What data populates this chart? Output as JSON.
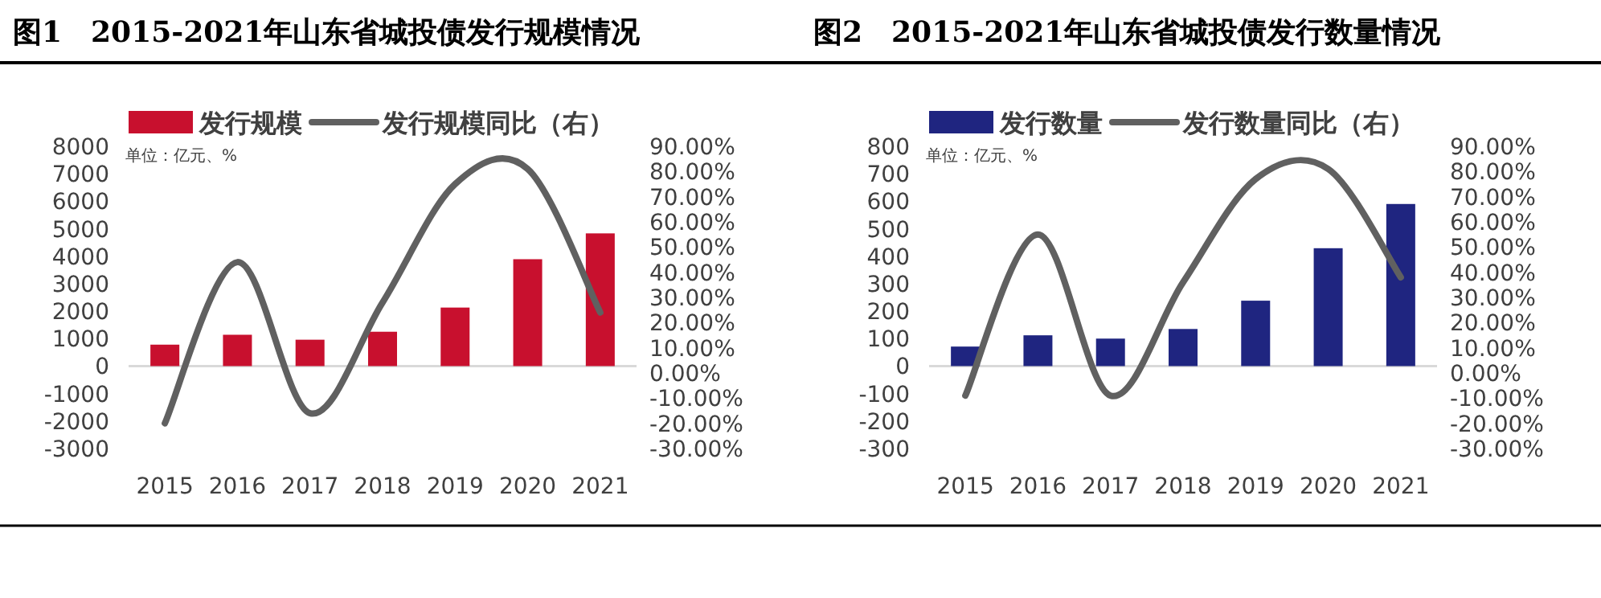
{
  "chart_data": [
    {
      "type": "bar",
      "title": "图1　2015-2021年山东省城投债发行规模情况",
      "categories": [
        "2015",
        "2016",
        "2017",
        "2018",
        "2019",
        "2020",
        "2021"
      ],
      "series": [
        {
          "name": "发行规模",
          "type": "bar",
          "color": "#c8102e",
          "values": [
            780,
            1140,
            960,
            1250,
            2130,
            3890,
            4830
          ]
        },
        {
          "name": "发行规模同比（右）",
          "type": "line",
          "axis": "y2",
          "color": "#606060",
          "values": [
            -20,
            44,
            -16,
            28,
            75,
            81,
            24
          ]
        }
      ],
      "ylim": [
        -3000,
        8000
      ],
      "yticks": [
        -3000,
        -2000,
        -1000,
        0,
        1000,
        2000,
        3000,
        4000,
        5000,
        6000,
        7000,
        8000
      ],
      "y2lim": [
        -30,
        90
      ],
      "y2ticks": [
        {
          "value": -30,
          "label": "-30.00%"
        },
        {
          "value": -20,
          "label": "-20.00%"
        },
        {
          "value": -10,
          "label": "-10.00%"
        },
        {
          "value": 0,
          "label": "0.00%"
        },
        {
          "value": 10,
          "label": "10.00%"
        },
        {
          "value": 20,
          "label": "20.00%"
        },
        {
          "value": 30,
          "label": "30.00%"
        },
        {
          "value": 40,
          "label": "40.00%"
        },
        {
          "value": 50,
          "label": "50.00%"
        },
        {
          "value": 60,
          "label": "60.00%"
        },
        {
          "value": 70,
          "label": "70.00%"
        },
        {
          "value": 80,
          "label": "80.00%"
        },
        {
          "value": 90,
          "label": "90.00%"
        }
      ],
      "legend": "top",
      "annotations": [
        "单位：亿元、%"
      ]
    },
    {
      "type": "bar",
      "title": "图2　2015-2021年山东省城投债发行数量情况",
      "categories": [
        "2015",
        "2016",
        "2017",
        "2018",
        "2019",
        "2020",
        "2021"
      ],
      "series": [
        {
          "name": "发行数量",
          "type": "bar",
          "color": "#1f2580",
          "values": [
            71,
            112,
            100,
            135,
            238,
            429,
            590
          ]
        },
        {
          "name": "发行数量同比（右）",
          "type": "line",
          "axis": "y2",
          "color": "#606060",
          "values": [
            -9,
            55,
            -9,
            36,
            77,
            81,
            38
          ]
        }
      ],
      "ylim": [
        -300,
        800
      ],
      "yticks": [
        -300,
        -200,
        -100,
        0,
        100,
        200,
        300,
        400,
        500,
        600,
        700,
        800
      ],
      "y2lim": [
        -30,
        90
      ],
      "y2ticks": [
        {
          "value": -30,
          "label": "-30.00%"
        },
        {
          "value": -20,
          "label": "-20.00%"
        },
        {
          "value": -10,
          "label": "-10.00%"
        },
        {
          "value": 0,
          "label": "0.00%"
        },
        {
          "value": 10,
          "label": "10.00%"
        },
        {
          "value": 20,
          "label": "20.00%"
        },
        {
          "value": 30,
          "label": "30.00%"
        },
        {
          "value": 40,
          "label": "40.00%"
        },
        {
          "value": 50,
          "label": "50.00%"
        },
        {
          "value": 60,
          "label": "60.00%"
        },
        {
          "value": 70,
          "label": "70.00%"
        },
        {
          "value": 80,
          "label": "80.00%"
        },
        {
          "value": 90,
          "label": "90.00%"
        }
      ],
      "legend": "top",
      "annotations": [
        "单位：亿元、%"
      ]
    }
  ]
}
